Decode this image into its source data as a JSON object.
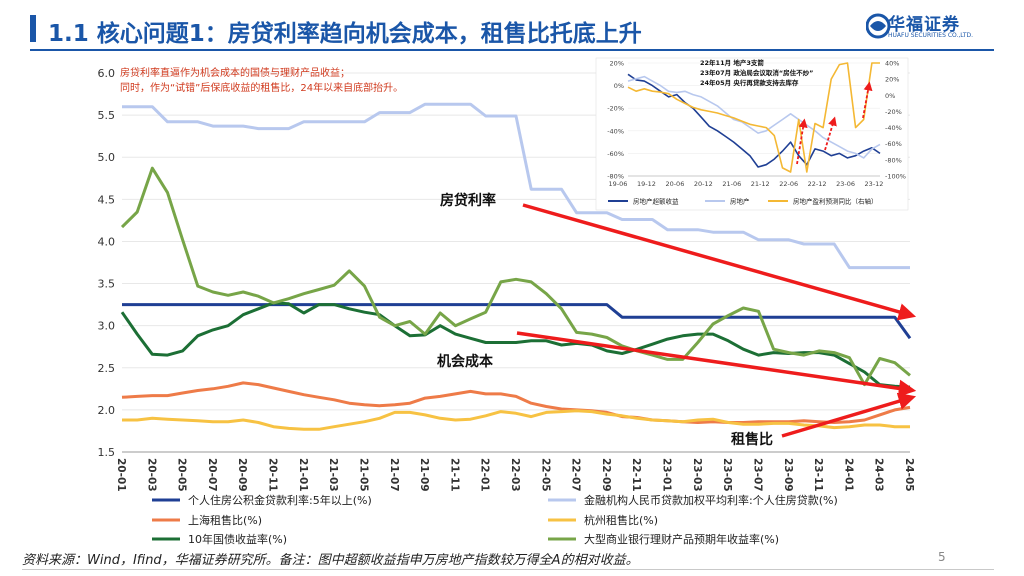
{
  "header": {
    "title": "1.1 核心问题1：房贷利率趋向机会成本，租售比托底上升",
    "logo_cn": "华福证券",
    "logo_en": "HUAFU SECURITIES CO.,LTD.",
    "brand_color": "#1a56a8"
  },
  "annotation": {
    "line1": "房贷利率直逼作为机会成本的国债与理财产品收益；",
    "line2": "同时，作为“试错”后保底收益的租售比，24年以来自底部抬升。"
  },
  "labels": {
    "mortgage_rate": "房贷利率",
    "opportunity_cost": "机会成本",
    "rent_price_ratio": "租售比"
  },
  "footer": {
    "source": "资料来源：Wind，Ifind，华福证券研究所。备注：图中超额收益指申万房地产指数较万得全A的相对收益。",
    "page": "5"
  },
  "chart_data": [
    {
      "type": "line",
      "title": "",
      "ylim": [
        1.5,
        6.0
      ],
      "yticks": [
        "1.5",
        "2.0",
        "2.5",
        "3.0",
        "3.5",
        "4.0",
        "4.5",
        "5.0",
        "5.5",
        "6.0"
      ],
      "categories": [
        "20-01",
        "20-02",
        "20-03",
        "20-04",
        "20-05",
        "20-06",
        "20-07",
        "20-08",
        "20-09",
        "20-10",
        "20-11",
        "20-12",
        "21-01",
        "21-02",
        "21-03",
        "21-04",
        "21-05",
        "21-06",
        "21-07",
        "21-08",
        "21-09",
        "21-10",
        "21-11",
        "21-12",
        "22-01",
        "22-02",
        "22-03",
        "22-04",
        "22-05",
        "22-06",
        "22-07",
        "22-08",
        "22-09",
        "22-10",
        "22-11",
        "22-12",
        "23-01",
        "23-02",
        "23-03",
        "23-04",
        "23-05",
        "23-06",
        "23-07",
        "23-08",
        "23-09",
        "23-10",
        "23-11",
        "23-12",
        "24-01",
        "24-02",
        "24-03",
        "24-04",
        "24-05"
      ],
      "xticks": [
        "20-01",
        "20-03",
        "20-05",
        "20-07",
        "20-09",
        "20-11",
        "21-01",
        "21-03",
        "21-05",
        "21-07",
        "21-09",
        "21-11",
        "22-01",
        "22-03",
        "22-05",
        "22-07",
        "22-09",
        "22-11",
        "23-01",
        "23-03",
        "23-05",
        "23-07",
        "23-09",
        "23-11",
        "24-01",
        "24-03",
        "24-05"
      ],
      "series": [
        {
          "name": "个人住房公积金贷款利率:5年以上(%)",
          "color": "#1f3f94",
          "values": [
            3.25,
            3.25,
            3.25,
            3.25,
            3.25,
            3.25,
            3.25,
            3.25,
            3.25,
            3.25,
            3.25,
            3.25,
            3.25,
            3.25,
            3.25,
            3.25,
            3.25,
            3.25,
            3.25,
            3.25,
            3.25,
            3.25,
            3.25,
            3.25,
            3.25,
            3.25,
            3.25,
            3.25,
            3.25,
            3.25,
            3.25,
            3.25,
            3.25,
            3.1,
            3.1,
            3.1,
            3.1,
            3.1,
            3.1,
            3.1,
            3.1,
            3.1,
            3.1,
            3.1,
            3.1,
            3.1,
            3.1,
            3.1,
            3.1,
            3.1,
            3.1,
            3.1,
            2.85
          ]
        },
        {
          "name": "金融机构人民币贷款加权平均利率:个人住房贷款(%)",
          "color": "#b8c8ee",
          "values": [
            5.6,
            5.6,
            5.6,
            5.42,
            5.42,
            5.42,
            5.37,
            5.37,
            5.37,
            5.34,
            5.34,
            5.34,
            5.42,
            5.42,
            5.42,
            5.42,
            5.42,
            5.53,
            5.53,
            5.53,
            5.63,
            5.63,
            5.63,
            5.63,
            5.49,
            5.49,
            5.49,
            4.62,
            4.62,
            4.62,
            4.34,
            4.34,
            4.34,
            4.26,
            4.26,
            4.26,
            4.14,
            4.14,
            4.14,
            4.11,
            4.11,
            4.11,
            4.02,
            4.02,
            4.02,
            3.97,
            3.97,
            3.97,
            3.69,
            3.69,
            3.69,
            3.69,
            3.69
          ]
        },
        {
          "name": "上海租售比(%)",
          "color": "#ee7b48",
          "values": [
            2.15,
            2.16,
            2.17,
            2.17,
            2.2,
            2.23,
            2.25,
            2.28,
            2.32,
            2.3,
            2.26,
            2.22,
            2.18,
            2.15,
            2.12,
            2.08,
            2.06,
            2.05,
            2.06,
            2.08,
            2.14,
            2.16,
            2.19,
            2.22,
            2.19,
            2.19,
            2.16,
            2.08,
            2.04,
            2.01,
            2.0,
            1.99,
            1.97,
            1.92,
            1.91,
            1.88,
            1.87,
            1.86,
            1.85,
            1.86,
            1.85,
            1.85,
            1.86,
            1.86,
            1.86,
            1.87,
            1.86,
            1.85,
            1.86,
            1.88,
            1.94,
            2.0,
            2.03
          ]
        },
        {
          "name": "杭州租售比(%)",
          "color": "#f7c243",
          "values": [
            1.88,
            1.88,
            1.9,
            1.89,
            1.88,
            1.87,
            1.86,
            1.86,
            1.88,
            1.85,
            1.8,
            1.78,
            1.77,
            1.77,
            1.8,
            1.83,
            1.86,
            1.9,
            1.97,
            1.97,
            1.94,
            1.9,
            1.88,
            1.89,
            1.93,
            1.98,
            1.96,
            1.92,
            1.97,
            1.98,
            1.99,
            1.98,
            1.95,
            1.93,
            1.9,
            1.88,
            1.87,
            1.86,
            1.88,
            1.89,
            1.85,
            1.83,
            1.83,
            1.84,
            1.84,
            1.82,
            1.81,
            1.79,
            1.8,
            1.82,
            1.82,
            1.8,
            1.8
          ]
        },
        {
          "name": "10年国债收益率(%)",
          "color": "#1c6f35",
          "values": [
            3.16,
            2.9,
            2.66,
            2.65,
            2.7,
            2.88,
            2.95,
            3.0,
            3.13,
            3.2,
            3.27,
            3.26,
            3.15,
            3.25,
            3.25,
            3.2,
            3.16,
            3.13,
            3.0,
            2.88,
            2.89,
            3.0,
            2.9,
            2.85,
            2.8,
            2.8,
            2.8,
            2.82,
            2.82,
            2.77,
            2.79,
            2.77,
            2.7,
            2.67,
            2.72,
            2.78,
            2.84,
            2.88,
            2.9,
            2.9,
            2.82,
            2.72,
            2.65,
            2.68,
            2.67,
            2.68,
            2.68,
            2.65,
            2.55,
            2.45,
            2.3,
            2.28,
            2.27
          ]
        },
        {
          "name": "大型商业银行理财产品预期年收益率(%)",
          "color": "#77a548",
          "values": [
            4.17,
            4.35,
            4.87,
            4.58,
            4.02,
            3.47,
            3.4,
            3.36,
            3.4,
            3.35,
            3.27,
            3.32,
            3.38,
            3.43,
            3.48,
            3.65,
            3.47,
            3.1,
            3.0,
            3.05,
            2.9,
            3.15,
            3.0,
            3.08,
            3.16,
            3.52,
            3.55,
            3.52,
            3.38,
            3.2,
            2.92,
            2.9,
            2.86,
            2.76,
            2.7,
            2.65,
            2.6,
            2.6,
            2.8,
            3.02,
            3.12,
            3.21,
            3.17,
            2.72,
            2.68,
            2.65,
            2.7,
            2.68,
            2.62,
            2.3,
            2.61,
            2.56,
            2.41
          ]
        }
      ]
    },
    {
      "type": "line",
      "title": "inset",
      "ylim": [
        -0.8,
        0.2
      ],
      "y2lim": [
        -1.0,
        0.4
      ],
      "yticks": [
        "20%",
        "0%",
        "-20%",
        "-40%",
        "-60%",
        "-80%"
      ],
      "y2ticks": [
        "40%",
        "20%",
        "0%",
        "-20%",
        "-40%",
        "-60%",
        "-80%",
        "-100%"
      ],
      "xticks": [
        "19-06",
        "19-12",
        "20-06",
        "20-12",
        "21-06",
        "21-12",
        "22-06",
        "22-12",
        "23-06",
        "23-12"
      ],
      "events": [
        "22年11月  地产3支箭",
        "23年07月  政治局会议取消“房住不炒”",
        "24年05月  央行再贷款支持去库存"
      ],
      "series": [
        {
          "name": "房地产超额收益",
          "color": "#1f3f94",
          "axis": "left",
          "values": [
            0.1,
            0.05,
            0.04,
            0.0,
            -0.05,
            -0.1,
            -0.08,
            -0.15,
            -0.2,
            -0.28,
            -0.36,
            -0.4,
            -0.45,
            -0.5,
            -0.56,
            -0.62,
            -0.72,
            -0.7,
            -0.65,
            -0.58,
            -0.5,
            -0.62,
            -0.7,
            -0.56,
            -0.58,
            -0.62,
            -0.6,
            -0.64,
            -0.62,
            -0.58,
            -0.55,
            -0.6
          ]
        },
        {
          "name": "房地产",
          "color": "#b8c8ee",
          "axis": "left",
          "values": [
            0.04,
            0.06,
            0.08,
            0.04,
            0.0,
            -0.05,
            -0.06,
            -0.05,
            -0.08,
            -0.1,
            -0.14,
            -0.18,
            -0.24,
            -0.3,
            -0.32,
            -0.37,
            -0.42,
            -0.4,
            -0.35,
            -0.3,
            -0.25,
            -0.3,
            -0.35,
            -0.4,
            -0.46,
            -0.5,
            -0.54,
            -0.58,
            -0.6,
            -0.64,
            -0.56,
            -0.52
          ]
        },
        {
          "name": "房地产盈利预测同比（右轴）",
          "color": "#f4b834",
          "axis": "right",
          "values": [
            0.1,
            0.05,
            0.08,
            0.05,
            0.04,
            0.02,
            -0.05,
            -0.1,
            -0.15,
            -0.18,
            -0.2,
            -0.22,
            -0.25,
            -0.28,
            -0.32,
            -0.36,
            -0.38,
            -0.4,
            -0.5,
            -0.9,
            -0.95,
            -0.3,
            -0.95,
            -0.35,
            -0.4,
            0.2,
            0.38,
            0.4,
            -0.4,
            -0.3,
            0.4,
            0.4
          ]
        }
      ]
    }
  ]
}
